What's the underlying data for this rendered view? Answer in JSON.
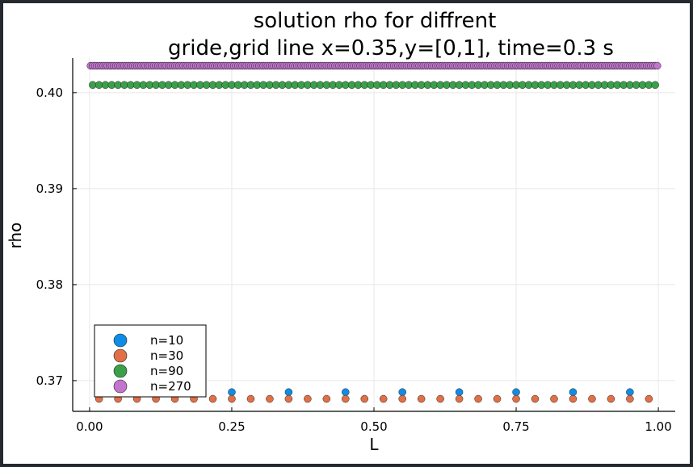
{
  "chart_data": {
    "type": "scatter",
    "title_line1": "solution rho for diffrent",
    "title_line2": "gride,grid line x=0.35,y=[0,1], time=0.3 s",
    "xlabel": "L",
    "ylabel": "rho",
    "xlim": [
      -0.0297,
      1.0297
    ],
    "ylim": [
      0.3668,
      0.4036
    ],
    "xticks": [
      0.0,
      0.25,
      0.5,
      0.75,
      1.0
    ],
    "xtick_labels": [
      "0.00",
      "0.25",
      "0.50",
      "0.75",
      "1.00"
    ],
    "yticks": [
      0.37,
      0.38,
      0.39,
      0.4
    ],
    "ytick_labels": [
      "0.37",
      "0.38",
      "0.39",
      "0.40"
    ],
    "grid": true,
    "legend_position": "bottom-left",
    "series": [
      {
        "name": "n=10",
        "color": "#0f8de6",
        "n": 10,
        "y": 0.3688
      },
      {
        "name": "n=30",
        "color": "#e26f46",
        "n": 30,
        "y": 0.3681
      },
      {
        "name": "n=90",
        "color": "#3ba04a",
        "n": 90,
        "y": 0.4008
      },
      {
        "name": "n=270",
        "color": "#c374cf",
        "n": 270,
        "y": 0.4028
      }
    ]
  }
}
